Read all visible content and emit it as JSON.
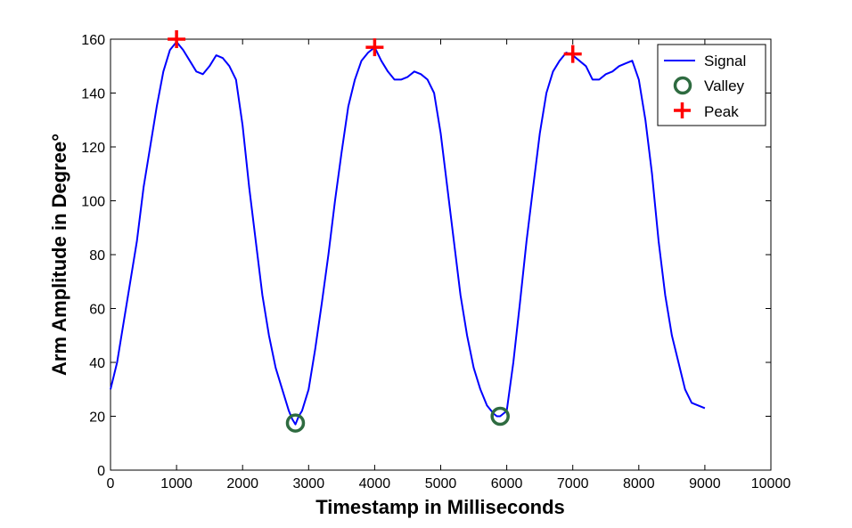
{
  "chart_data": {
    "type": "line",
    "title": "",
    "xlabel": "Timestamp in Milliseconds",
    "ylabel": "Arm Amplitude in Degree°",
    "xlim": [
      0,
      10000
    ],
    "ylim": [
      0,
      160
    ],
    "xticks": [
      0,
      1000,
      2000,
      3000,
      4000,
      5000,
      6000,
      7000,
      8000,
      9000,
      10000
    ],
    "yticks": [
      0,
      20,
      40,
      60,
      80,
      100,
      120,
      140,
      160
    ],
    "grid": false,
    "legend_position": "top-right",
    "series": [
      {
        "name": "Signal",
        "kind": "line",
        "color": "#0000ff",
        "x": [
          0,
          100,
          200,
          300,
          400,
          500,
          600,
          700,
          800,
          900,
          1000,
          1100,
          1200,
          1300,
          1400,
          1500,
          1600,
          1700,
          1800,
          1900,
          2000,
          2100,
          2200,
          2300,
          2400,
          2500,
          2600,
          2700,
          2750,
          2800,
          2850,
          2900,
          3000,
          3100,
          3200,
          3300,
          3400,
          3500,
          3600,
          3700,
          3800,
          3900,
          4000,
          4100,
          4200,
          4300,
          4400,
          4500,
          4600,
          4700,
          4800,
          4900,
          5000,
          5100,
          5200,
          5300,
          5400,
          5500,
          5600,
          5700,
          5800,
          5850,
          5900,
          5950,
          6000,
          6100,
          6200,
          6300,
          6400,
          6500,
          6600,
          6700,
          6800,
          6900,
          7000,
          7100,
          7200,
          7300,
          7400,
          7500,
          7600,
          7700,
          7800,
          7900,
          8000,
          8100,
          8200,
          8300,
          8400,
          8500,
          8600,
          8700,
          8800,
          8900,
          9000
        ],
        "y": [
          30,
          40,
          55,
          70,
          85,
          105,
          120,
          135,
          148,
          156,
          159,
          156,
          152,
          148,
          147,
          150,
          154,
          153,
          150,
          145,
          128,
          105,
          85,
          65,
          50,
          38,
          30,
          22,
          19,
          17,
          20,
          22,
          30,
          45,
          62,
          80,
          100,
          118,
          135,
          145,
          152,
          155,
          157,
          152,
          148,
          145,
          145,
          146,
          148,
          147,
          145,
          140,
          125,
          105,
          85,
          65,
          50,
          38,
          30,
          24,
          21,
          20,
          20,
          21,
          22,
          40,
          62,
          85,
          105,
          125,
          140,
          148,
          152,
          155,
          154,
          152,
          150,
          145,
          145,
          147,
          148,
          150,
          151,
          152,
          145,
          130,
          110,
          85,
          65,
          50,
          40,
          30,
          25,
          24,
          23
        ]
      },
      {
        "name": "Valley",
        "kind": "marker-circle",
        "color": "#2e6b40",
        "x": [
          2800,
          5900
        ],
        "y": [
          17.5,
          20
        ]
      },
      {
        "name": "Peak",
        "kind": "marker-plus",
        "color": "#ff0000",
        "x": [
          1000,
          4000,
          7000
        ],
        "y": [
          160,
          157,
          154.5
        ]
      }
    ]
  }
}
